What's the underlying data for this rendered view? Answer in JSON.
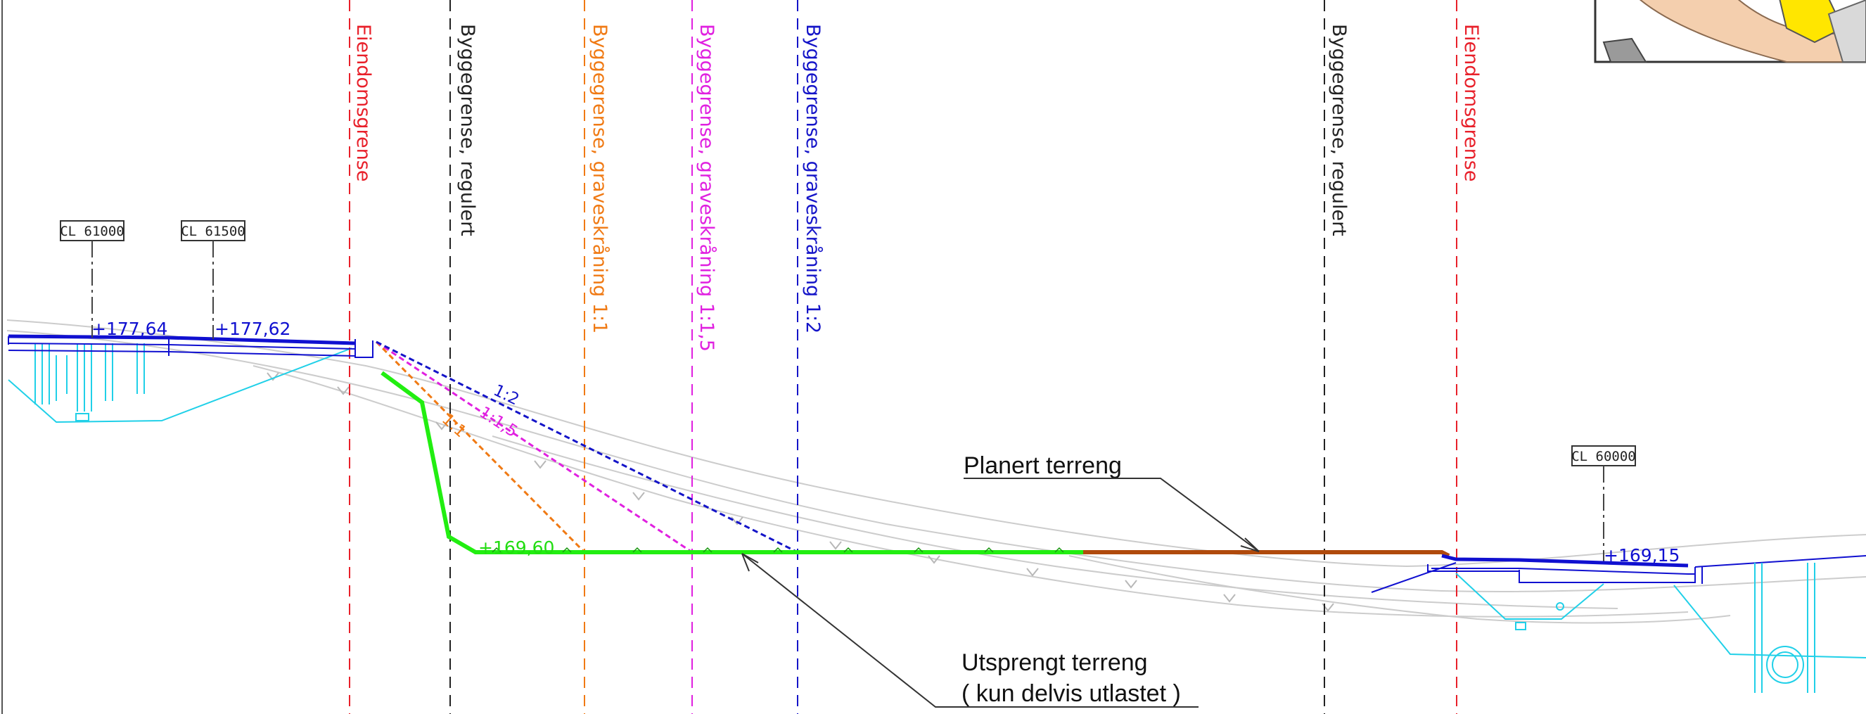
{
  "colors": {
    "property": "#e8202a",
    "building_black": "#222222",
    "slope_1_1": "#f07a14",
    "slope_1_1_5": "#e020e0",
    "slope_1_2": "#1414c8",
    "blasted": "#22ee11",
    "planed": "#b04a0c",
    "road": "#1010d0",
    "structure": "#20d0e8",
    "terrain_grey": "#c8c8c8"
  },
  "vertical_lines": [
    {
      "label": "Eiendomsgrense",
      "color": "#e8202a"
    },
    {
      "label": "Byggegrense, regulert",
      "color": "#222222"
    },
    {
      "label": "Byggegrense, graveskråning 1:1",
      "color": "#f07a14"
    },
    {
      "label": "Byggegrense, graveskråning 1:1,5",
      "color": "#e020e0"
    },
    {
      "label": "Byggegrense, graveskråning 1:2",
      "color": "#1414c8"
    },
    {
      "label": "Byggegrense, regulert",
      "color": "#222222"
    },
    {
      "label": "Eiendomsgrense",
      "color": "#e8202a"
    }
  ],
  "centerlines": [
    {
      "label": "CL 61000",
      "elevation": "+177,64"
    },
    {
      "label": "CL 61500",
      "elevation": "+177,62"
    },
    {
      "label": "CL 60000",
      "elevation": "+169,15"
    }
  ],
  "bottom_elevation": "+169,60",
  "slope_labels": [
    "1:1",
    "1:1,5",
    "1:2"
  ],
  "annotations": {
    "planed": "Planert terreng",
    "blasted_line1": "Utsprengt terreng",
    "blasted_line2": "( kun delvis utlastet )"
  }
}
